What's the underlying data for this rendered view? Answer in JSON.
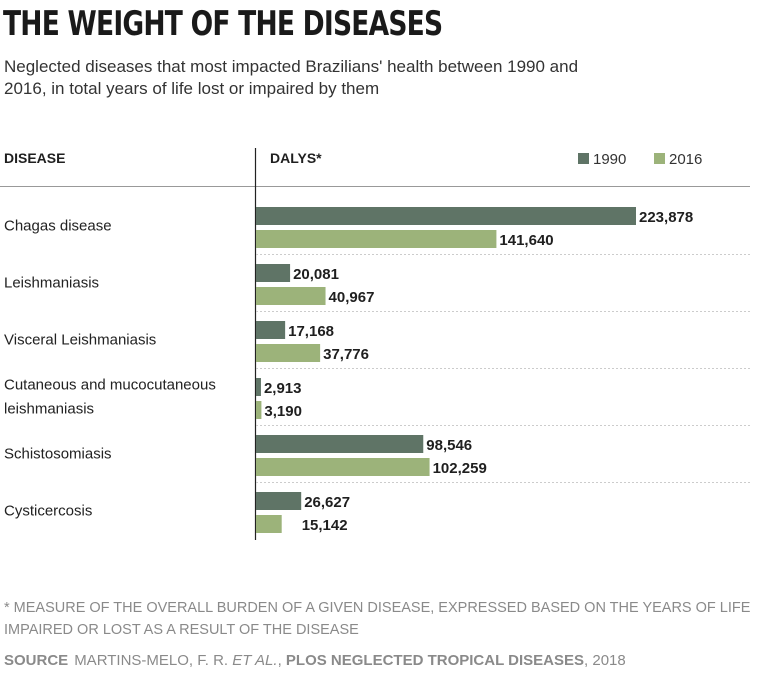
{
  "title": "THE WEIGHT OF THE DISEASES",
  "subtitle": "Neglected diseases that most impacted Brazilians' health between 1990 and 2016, in total years of life lost or impaired by them",
  "footnote": "* MEASURE OF THE OVERALL BURDEN OF A GIVEN DISEASE, EXPRESSED BASED ON THE YEARS OF LIFE IMPAIRED OR LOST AS A RESULT OF THE DISEASE",
  "source": {
    "label": "SOURCE",
    "authors": "MARTINS-MELO, F. R.",
    "etal": "ET AL.",
    "separator": ",",
    "journal": "PLOS NEGLECTED TROPICAL DISEASES",
    "year": ", 2018"
  },
  "colors": {
    "series_1990": "#5f7466",
    "series_2016": "#9cb37a"
  },
  "chart_data": {
    "type": "bar",
    "orientation": "horizontal",
    "category_header": "DISEASE",
    "value_header": "DALYS*",
    "categories": [
      [
        "Chagas disease"
      ],
      [
        "Leishmaniasis"
      ],
      [
        "Visceral Leishmaniasis"
      ],
      [
        "Cutaneous and mucocutaneous",
        "leishmaniasis"
      ],
      [
        "Schistosomiasis"
      ],
      [
        "Cysticercosis"
      ]
    ],
    "series": [
      {
        "name": "1990",
        "color": "#5f7466",
        "values": [
          223878,
          20081,
          17168,
          2913,
          98546,
          26627
        ]
      },
      {
        "name": "2016",
        "color": "#9cb37a",
        "values": [
          141640,
          40967,
          37776,
          3190,
          102259,
          15142
        ]
      }
    ],
    "xlim": [
      0,
      223878
    ],
    "legend_position": "top-right",
    "value_labels": true
  }
}
